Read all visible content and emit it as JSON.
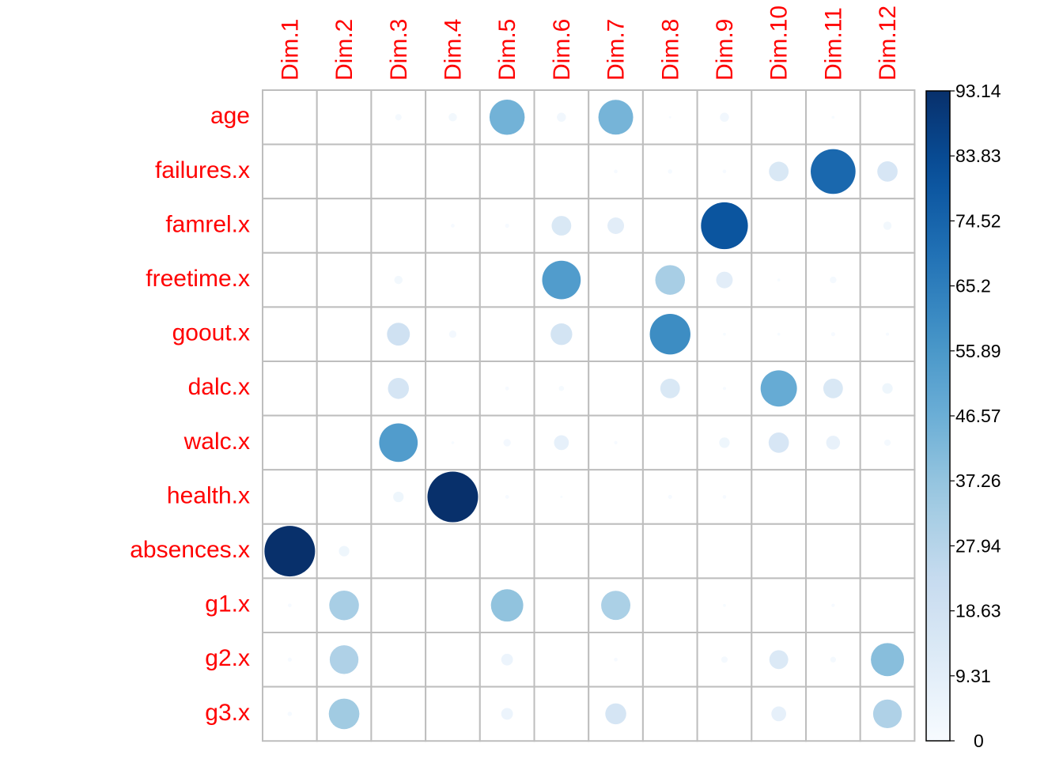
{
  "chart_data": {
    "type": "heatmap",
    "columns": [
      "Dim.1",
      "Dim.2",
      "Dim.3",
      "Dim.4",
      "Dim.5",
      "Dim.6",
      "Dim.7",
      "Dim.8",
      "Dim.9",
      "Dim.10",
      "Dim.11",
      "Dim.12"
    ],
    "rows": [
      "age",
      "failures.x",
      "famrel.x",
      "freetime.x",
      "goout.x",
      "dalc.x",
      "walc.x",
      "health.x",
      "absences.x",
      "g1.x",
      "g2.x",
      "g3.x"
    ],
    "values": [
      [
        0,
        0,
        1.5,
        2.5,
        45,
        3,
        44,
        0.2,
        3,
        0,
        0.3,
        0
      ],
      [
        0,
        0,
        0,
        0,
        0,
        0,
        0.5,
        0.7,
        0.5,
        14,
        73,
        15
      ],
      [
        0,
        0,
        0,
        0.5,
        0.6,
        14,
        10,
        0,
        80,
        0,
        0,
        2.5
      ],
      [
        0,
        0,
        2.5,
        0,
        0,
        54,
        0,
        32,
        10,
        0.3,
        1.6,
        0
      ],
      [
        0,
        0,
        19,
        2,
        0,
        17,
        0,
        60,
        0.3,
        0.3,
        0.6,
        0.4
      ],
      [
        0,
        0,
        16,
        0,
        0.5,
        1,
        0,
        14,
        0.4,
        48,
        14,
        4
      ],
      [
        0,
        0,
        54,
        0.3,
        2,
        8,
        0.4,
        0,
        4,
        15,
        7,
        1.5
      ],
      [
        0,
        0,
        4,
        93.14,
        0.5,
        0.2,
        0,
        0.6,
        0.5,
        0,
        0,
        0
      ],
      [
        93.14,
        4,
        0,
        0,
        0,
        0,
        0,
        0,
        0,
        0,
        0,
        0
      ],
      [
        0.5,
        32,
        0,
        0,
        38,
        0,
        31,
        0,
        0.3,
        0,
        0.4,
        0
      ],
      [
        0.6,
        30,
        0,
        0,
        5,
        0,
        0.5,
        0,
        1.5,
        13,
        1.2,
        40
      ],
      [
        0.7,
        34,
        0,
        0,
        5,
        0,
        16,
        0,
        0,
        8,
        0,
        30
      ]
    ],
    "colorbar_ticks": [
      "93.14",
      "83.83",
      "74.52",
      "65.2",
      "55.89",
      "46.57",
      "37.26",
      "27.94",
      "18.63",
      "9.31",
      "0"
    ],
    "vmin": 0,
    "vmax": 93.14,
    "colors": {
      "label": "#ff0000",
      "grid": "#bebebe",
      "low": "#f7fbff",
      "high": "#08306b"
    }
  }
}
